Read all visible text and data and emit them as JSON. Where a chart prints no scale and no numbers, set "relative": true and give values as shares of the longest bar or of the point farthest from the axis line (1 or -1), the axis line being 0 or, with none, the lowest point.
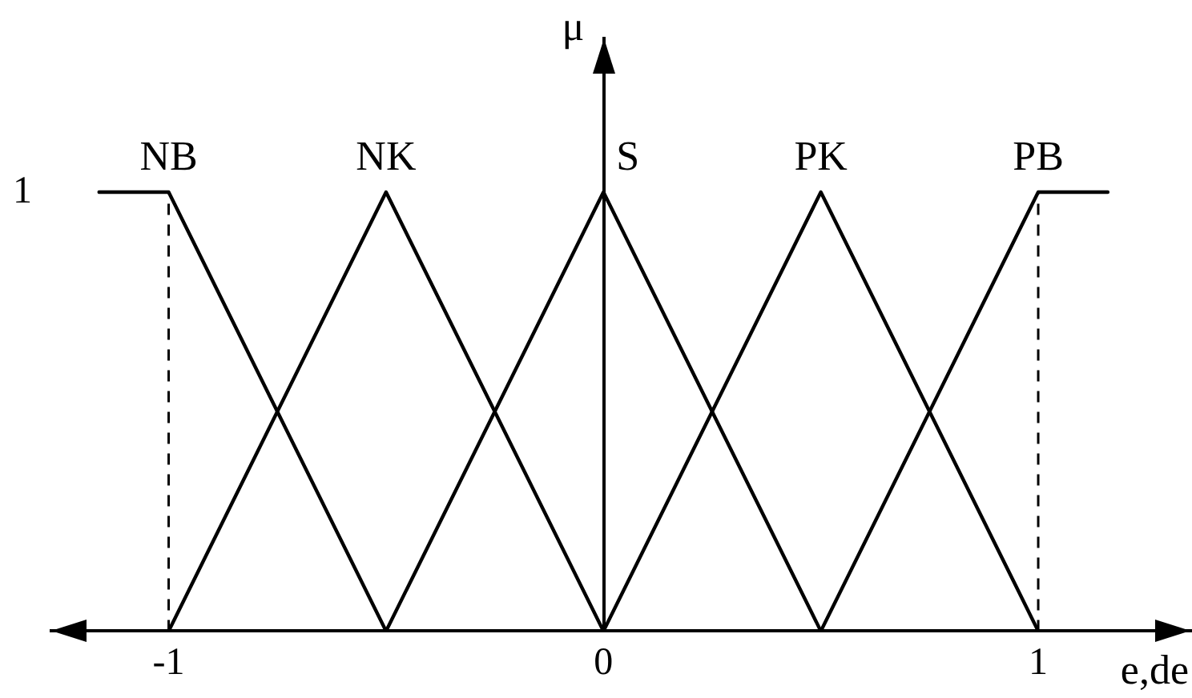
{
  "chart_data": {
    "type": "line",
    "ylabel": "μ",
    "xlabel": "e,de",
    "relative": true,
    "series": [
      {
        "name": "NB",
        "color": "#000000",
        "x": [
          -1.16,
          -1,
          -0.5
        ],
        "values": [
          1,
          1,
          0
        ]
      },
      {
        "name": "NK",
        "color": "#000000",
        "x": [
          -1,
          -0.5,
          0
        ],
        "values": [
          0,
          1,
          0
        ]
      },
      {
        "name": "S",
        "color": "#000000",
        "x": [
          -0.5,
          0,
          0.5
        ],
        "values": [
          0,
          1,
          0
        ]
      },
      {
        "name": "PK",
        "color": "#000000",
        "x": [
          0,
          0.5,
          1
        ],
        "values": [
          0,
          1,
          0
        ]
      },
      {
        "name": "PB",
        "color": "#000000",
        "x": [
          0.5,
          1,
          1.16
        ],
        "values": [
          0,
          1,
          1
        ]
      }
    ],
    "ref_lines": [
      {
        "axis": "x",
        "value": -1,
        "color": "#000000",
        "line_style": "dashed"
      },
      {
        "axis": "x",
        "value": 1,
        "color": "#000000",
        "line_style": "dashed"
      }
    ],
    "annotations": [
      "1"
    ],
    "xlim": [
      -1.27,
      1.35
    ],
    "xticks": [
      -1,
      0,
      1
    ],
    "grid": false,
    "legend": false,
    "marker": "none",
    "line_style": "solid"
  }
}
